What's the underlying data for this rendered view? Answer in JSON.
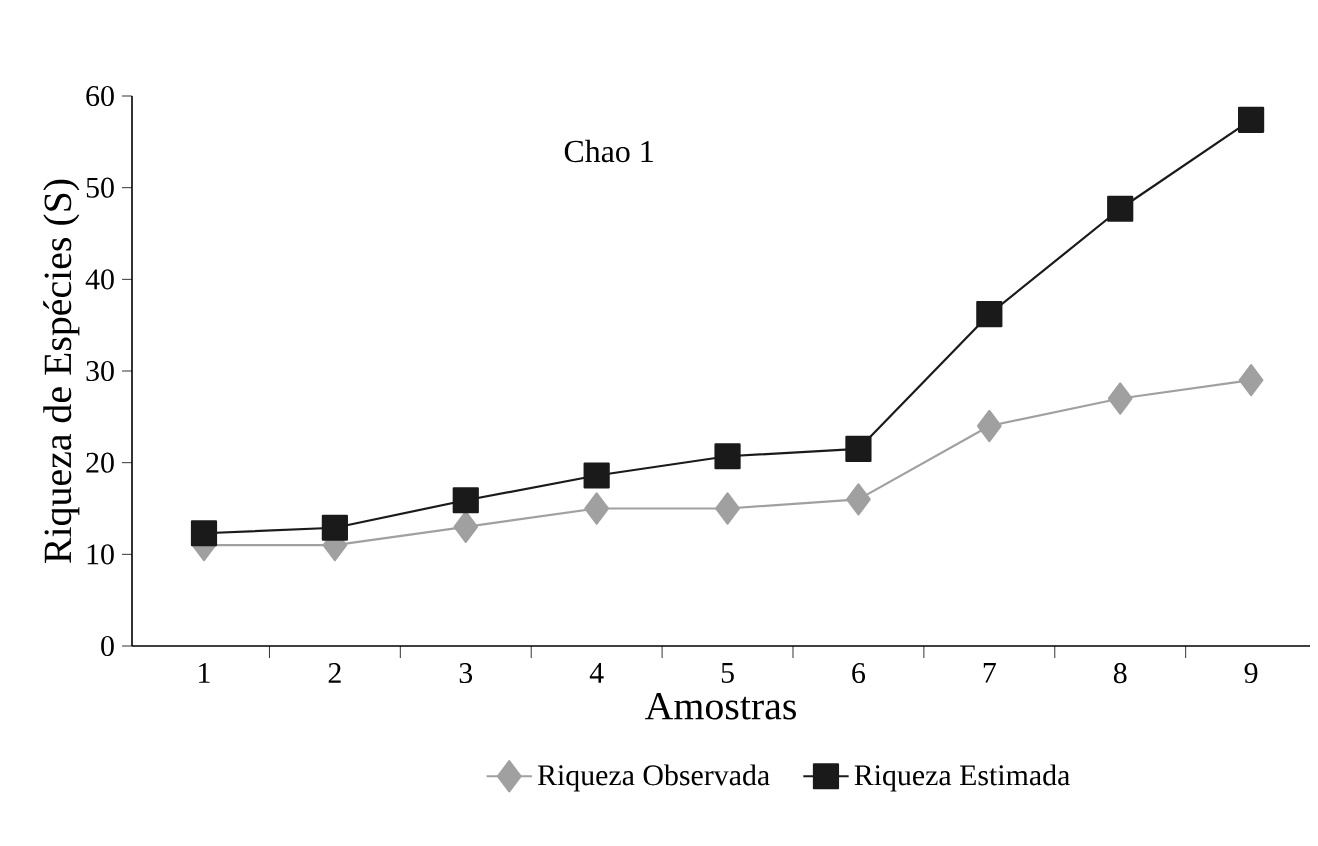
{
  "chart_data": {
    "type": "line",
    "xlabel": "Amostras",
    "ylabel": "Riqueza de Espécies (S)",
    "annotations": [
      "Chao 1"
    ],
    "categories": [
      "1",
      "2",
      "3",
      "4",
      "5",
      "6",
      "7",
      "8",
      "9"
    ],
    "series": [
      {
        "name": "Riqueza Observada",
        "color": "#a0a0a0",
        "marker": "diamond",
        "values": [
          11,
          11,
          13,
          15,
          15,
          16,
          24,
          27,
          29
        ]
      },
      {
        "name": "Riqueza Estimada",
        "color": "#1a1a1a",
        "marker": "square",
        "values": [
          12.3,
          12.9,
          15.9,
          18.6,
          20.7,
          21.5,
          36.2,
          47.7,
          57.4
        ]
      }
    ],
    "ylim": [
      0,
      60
    ],
    "yticks": [
      0,
      10,
      20,
      30,
      40,
      50,
      60
    ],
    "legend": "bottom",
    "grid": false,
    "line_style": "solid"
  }
}
